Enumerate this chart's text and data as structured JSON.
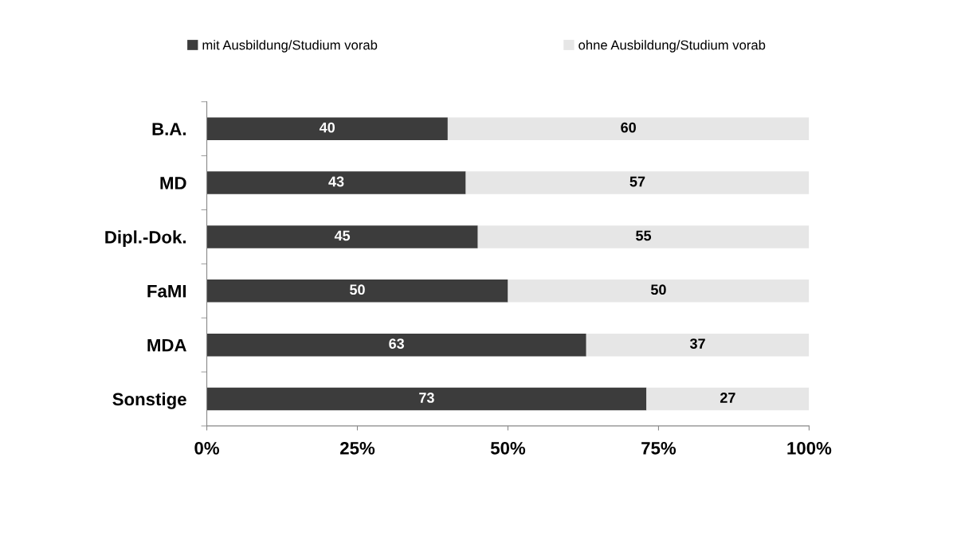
{
  "chart_data": {
    "type": "bar",
    "orientation": "horizontal",
    "stacked": true,
    "categories": [
      "B.A.",
      "MD",
      "Dipl.-Dok.",
      "FaMI",
      "MDA",
      "Sonstige"
    ],
    "series": [
      {
        "name": "mit Ausbildung/Studium vorab",
        "color": "#3c3c3c",
        "values": [
          40,
          43,
          45,
          50,
          63,
          73
        ]
      },
      {
        "name": "ohne Ausbildung/Studium vorab",
        "color": "#e6e6e6",
        "values": [
          60,
          57,
          55,
          50,
          37,
          27
        ]
      }
    ],
    "xlim": [
      0,
      100
    ],
    "xticks": [
      {
        "value": 0,
        "label": "0%"
      },
      {
        "value": 25,
        "label": "25%"
      },
      {
        "value": 50,
        "label": "50%"
      },
      {
        "value": 75,
        "label": "75%"
      },
      {
        "value": 100,
        "label": "100%"
      }
    ],
    "data_labels": true,
    "grid": false,
    "legend": "top"
  }
}
